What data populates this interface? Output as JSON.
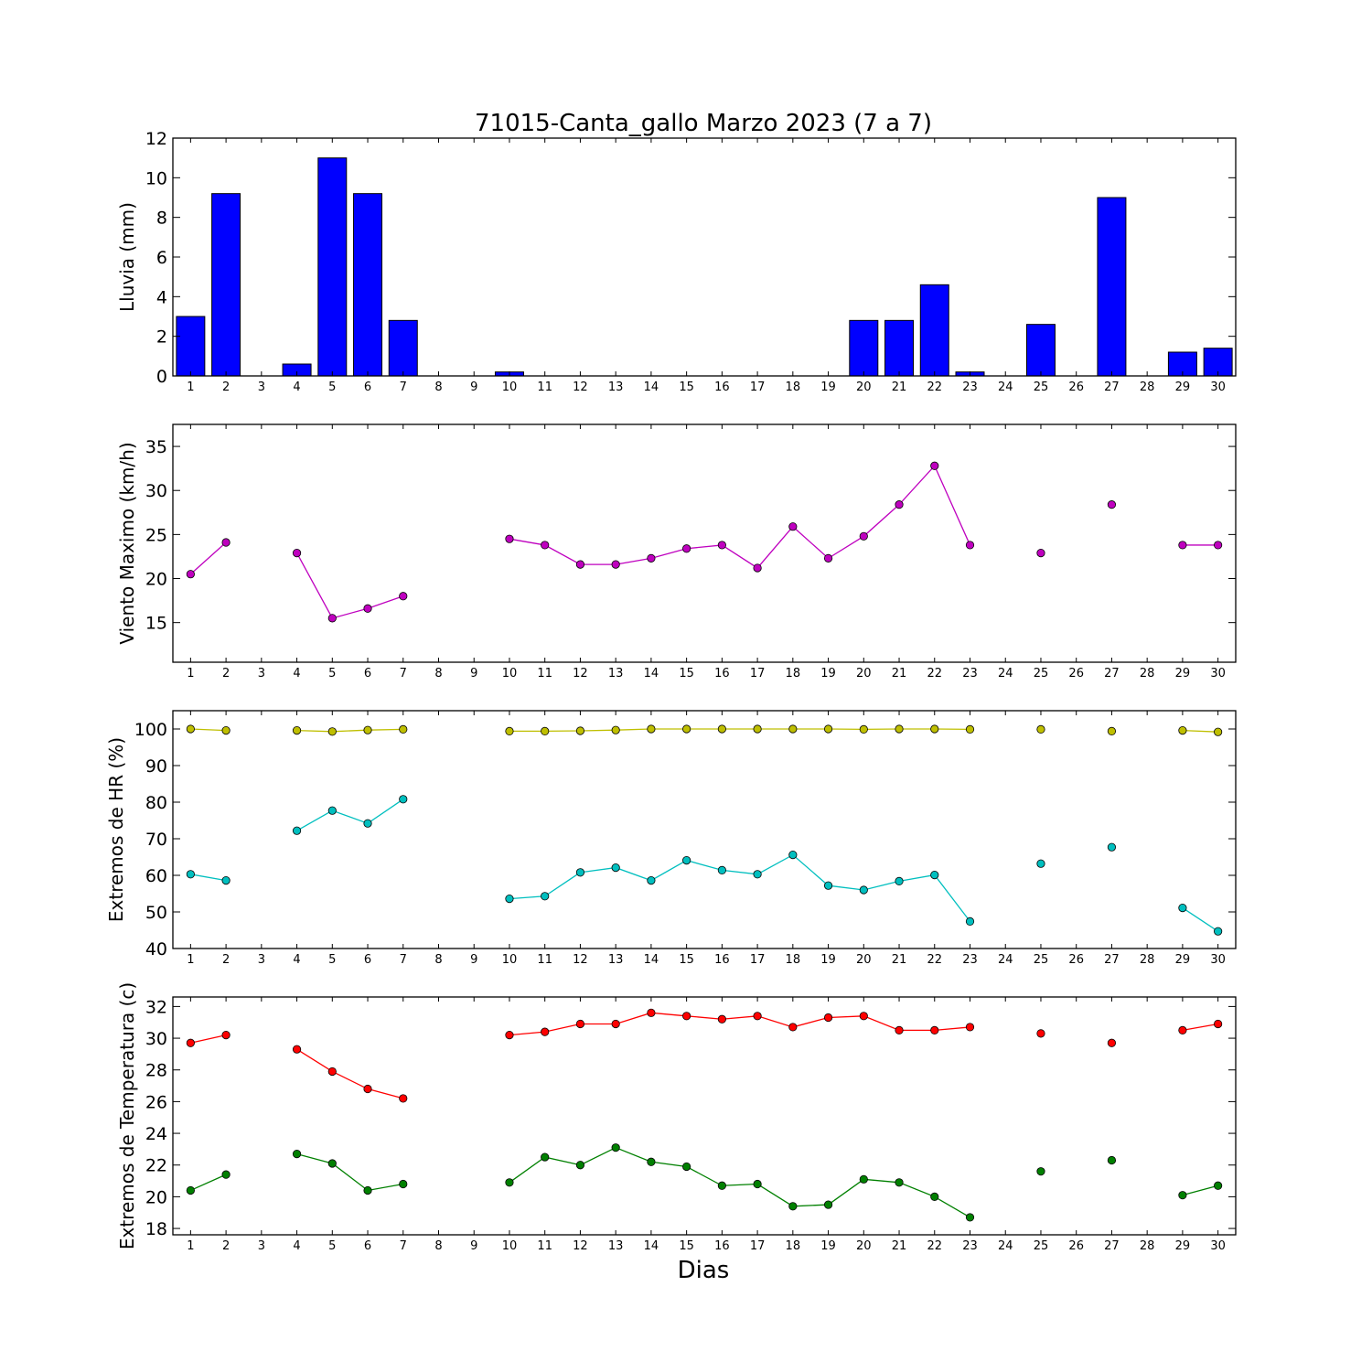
{
  "title": "71015-Canta_gallo Marzo 2023  (7 a 7)",
  "xlabel": "Dias",
  "x_ticks": [
    1,
    2,
    3,
    4,
    5,
    6,
    7,
    8,
    9,
    10,
    11,
    12,
    13,
    14,
    15,
    16,
    17,
    18,
    19,
    20,
    21,
    22,
    23,
    24,
    25,
    26,
    27,
    28,
    29,
    30
  ],
  "chart_data": [
    {
      "type": "bar",
      "ylabel": "Lluvia (mm)",
      "ylim": [
        0,
        12
      ],
      "yticks": [
        0,
        2,
        4,
        6,
        8,
        10,
        12
      ],
      "xlim": [
        0.5,
        30.5
      ],
      "x": [
        1,
        2,
        3,
        4,
        5,
        6,
        7,
        8,
        9,
        10,
        11,
        12,
        13,
        14,
        15,
        16,
        17,
        18,
        19,
        20,
        21,
        22,
        23,
        24,
        25,
        26,
        27,
        28,
        29,
        30
      ],
      "values": [
        3.0,
        9.2,
        0,
        0.6,
        11.0,
        9.2,
        2.8,
        0,
        0,
        0.2,
        0,
        0,
        0,
        0,
        0,
        0,
        0,
        0,
        0,
        2.8,
        2.8,
        4.6,
        0.2,
        0,
        2.6,
        0,
        9.0,
        0,
        1.2,
        1.4
      ],
      "color": "#0000ff",
      "grid": false
    },
    {
      "type": "line",
      "ylabel": "Viento Maximo (km/h)",
      "ylim": [
        10.5,
        37.5
      ],
      "yticks": [
        15,
        20,
        25,
        30,
        35
      ],
      "xlim": [
        0.5,
        30.5
      ],
      "x": [
        1,
        2,
        3,
        4,
        5,
        6,
        7,
        8,
        9,
        10,
        11,
        12,
        13,
        14,
        15,
        16,
        17,
        18,
        19,
        20,
        21,
        22,
        23,
        24,
        25,
        26,
        27,
        28,
        29,
        30
      ],
      "series": [
        {
          "color": "#bf00bf",
          "values": [
            20.5,
            24.1,
            null,
            22.9,
            15.5,
            16.6,
            18.0,
            null,
            null,
            24.5,
            23.8,
            21.6,
            21.6,
            22.3,
            23.4,
            23.8,
            21.2,
            25.9,
            22.3,
            24.8,
            28.4,
            32.8,
            23.8,
            null,
            22.9,
            null,
            28.4,
            null,
            23.8,
            23.8
          ]
        }
      ],
      "grid": false
    },
    {
      "type": "line",
      "ylabel": "Extremos de HR (%)",
      "ylim": [
        40,
        105
      ],
      "yticks": [
        40,
        50,
        60,
        70,
        80,
        90,
        100
      ],
      "xlim": [
        0.5,
        30.5
      ],
      "x": [
        1,
        2,
        3,
        4,
        5,
        6,
        7,
        8,
        9,
        10,
        11,
        12,
        13,
        14,
        15,
        16,
        17,
        18,
        19,
        20,
        21,
        22,
        23,
        24,
        25,
        26,
        27,
        28,
        29,
        30
      ],
      "series": [
        {
          "color": "#bfbf00",
          "values": [
            100,
            99.6,
            null,
            99.6,
            99.3,
            99.7,
            99.9,
            null,
            null,
            99.4,
            99.4,
            99.5,
            99.7,
            100,
            100,
            100,
            100,
            100,
            100,
            99.9,
            100,
            100,
            99.9,
            null,
            99.9,
            null,
            99.4,
            null,
            99.6,
            99.2
          ]
        },
        {
          "color": "#00bfbf",
          "values": [
            60.3,
            58.6,
            null,
            72.2,
            77.7,
            74.2,
            80.8,
            null,
            null,
            53.6,
            54.3,
            60.8,
            62.1,
            58.6,
            64.1,
            61.4,
            60.3,
            65.6,
            57.2,
            56.0,
            58.4,
            60.1,
            47.4,
            null,
            63.2,
            null,
            67.7,
            null,
            51.1,
            44.7
          ]
        }
      ],
      "grid": false
    },
    {
      "type": "line",
      "ylabel": "Extremos de Temperatura (c)",
      "ylim": [
        17.6,
        32.6
      ],
      "yticks": [
        18,
        20,
        22,
        24,
        26,
        28,
        30,
        32
      ],
      "xlim": [
        0.5,
        30.5
      ],
      "x": [
        1,
        2,
        3,
        4,
        5,
        6,
        7,
        8,
        9,
        10,
        11,
        12,
        13,
        14,
        15,
        16,
        17,
        18,
        19,
        20,
        21,
        22,
        23,
        24,
        25,
        26,
        27,
        28,
        29,
        30
      ],
      "series": [
        {
          "color": "#ff0000",
          "values": [
            29.7,
            30.2,
            null,
            29.3,
            27.9,
            26.8,
            26.2,
            null,
            null,
            30.2,
            30.4,
            30.9,
            30.9,
            31.6,
            31.4,
            31.2,
            31.4,
            30.7,
            31.3,
            31.4,
            30.5,
            30.5,
            30.7,
            null,
            30.3,
            null,
            29.7,
            null,
            30.5,
            30.9
          ]
        },
        {
          "color": "#008000",
          "values": [
            20.4,
            21.4,
            null,
            22.7,
            22.1,
            20.4,
            20.8,
            null,
            null,
            20.9,
            22.5,
            22.0,
            23.1,
            22.2,
            21.9,
            20.7,
            20.8,
            19.4,
            19.5,
            21.1,
            20.9,
            20.0,
            18.7,
            null,
            21.6,
            null,
            22.3,
            null,
            20.1,
            20.7
          ]
        }
      ],
      "grid": false
    }
  ]
}
